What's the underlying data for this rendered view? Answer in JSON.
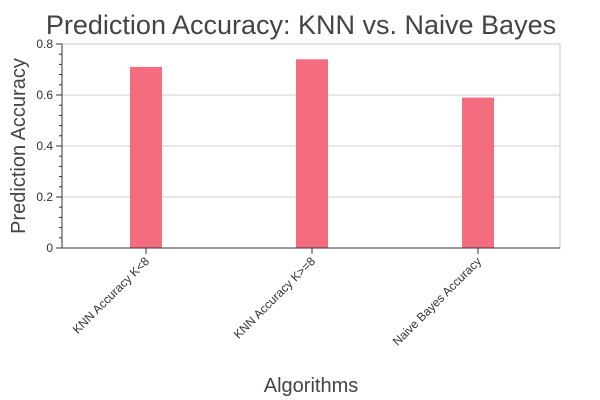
{
  "chart_data": {
    "type": "bar",
    "title": "Prediction Accuracy: KNN vs. Naive Bayes",
    "xlabel": "Algorithms",
    "ylabel": "Prediction Accuracy",
    "categories": [
      "KNN Accuracy K<8",
      "KNN Accuracy K>=8",
      "Naive Bayes Accuracy"
    ],
    "values": [
      0.71,
      0.74,
      0.59
    ],
    "ylim": [
      0,
      0.8
    ],
    "yticks": [
      0,
      0.2,
      0.4,
      0.6,
      0.8
    ],
    "ytick_labels": [
      "0",
      "0.2",
      "0.4",
      "0.6",
      "0.8"
    ],
    "grid": "horizontal",
    "bar_color": "#f46d7e"
  }
}
